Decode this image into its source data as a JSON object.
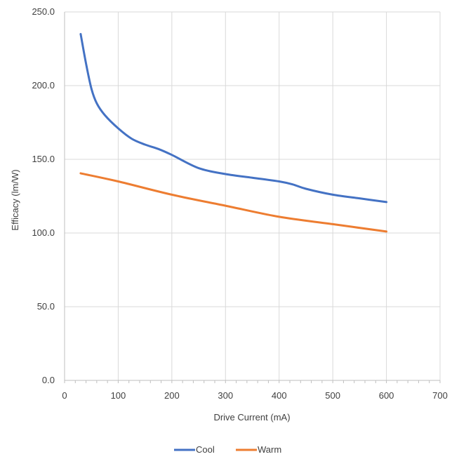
{
  "chart_data": {
    "type": "line",
    "title": "",
    "xlabel": "Drive Current (mA)",
    "ylabel": "Efficacy (lm/W)",
    "xlim": [
      0,
      700
    ],
    "ylim": [
      0,
      250
    ],
    "x_ticks": [
      0,
      100,
      200,
      300,
      400,
      500,
      600,
      700
    ],
    "x_tick_labels": [
      "0",
      "100",
      "200",
      "300",
      "400",
      "500",
      "600",
      "700"
    ],
    "y_ticks": [
      0,
      50,
      100,
      150,
      200,
      250
    ],
    "y_tick_labels": [
      "0.0",
      "50.0",
      "100.0",
      "150.0",
      "200.0",
      "250.0"
    ],
    "grid": true,
    "legend": "bottom",
    "series": [
      {
        "name": "Cool",
        "color": "#4472C4",
        "x": [
          30,
          40,
          50,
          60,
          75,
          100,
          125,
          150,
          175,
          200,
          250,
          300,
          350,
          400,
          425,
          450,
          500,
          550,
          600
        ],
        "y": [
          235,
          215,
          198,
          188,
          180,
          171,
          164,
          160,
          157,
          153,
          144,
          140,
          137.5,
          135,
          133,
          130,
          126,
          123.5,
          121
        ]
      },
      {
        "name": "Warm",
        "color": "#ED7D31",
        "x": [
          30,
          100,
          200,
          300,
          400,
          500,
          600
        ],
        "y": [
          140.5,
          135,
          126,
          118.5,
          111,
          106,
          101
        ]
      }
    ]
  }
}
